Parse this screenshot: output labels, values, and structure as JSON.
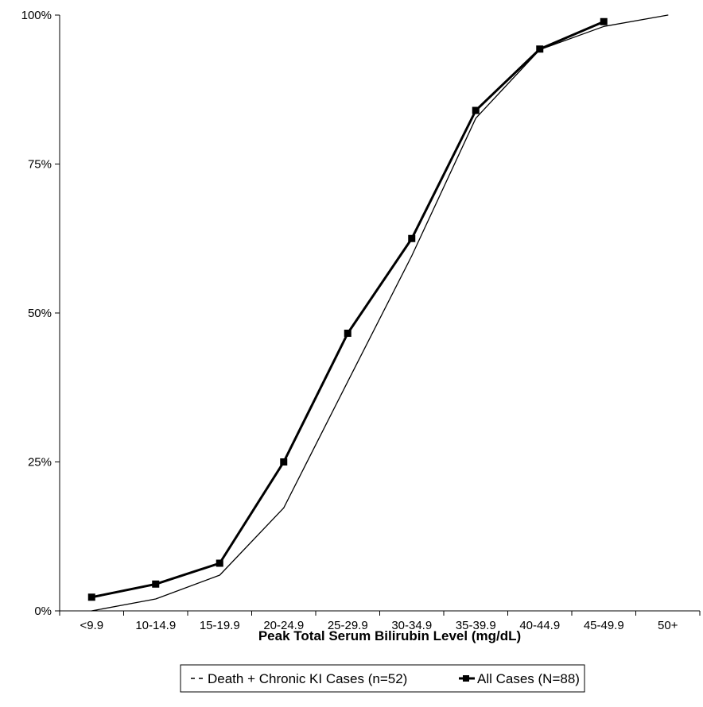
{
  "chart_data": {
    "type": "line",
    "title": "",
    "xlabel": "Peak Total Serum Bilirubin Level (mg/dL)",
    "ylabel": "",
    "categories": [
      "<9.9",
      "10-14.9",
      "15-19.9",
      "20-24.9",
      "25-29.9",
      "30-34.9",
      "35-39.9",
      "40-44.9",
      "45-49.9",
      "50+"
    ],
    "y_tick_labels": [
      "0%",
      "25%",
      "50%",
      "75%",
      "100%"
    ],
    "ylim": [
      0,
      100
    ],
    "y_unit": "%",
    "grid": false,
    "legend_position": "bottom-center",
    "series": [
      {
        "name": "Death + Chronic KI Cases (n=52)",
        "style": "thin-line-no-markers",
        "color": "#000000",
        "values": [
          0,
          2,
          6,
          17.3,
          38.5,
          59.6,
          82.7,
          94.2,
          98.1,
          100
        ]
      },
      {
        "name": "All Cases (N=88)",
        "style": "thick-line-square-markers",
        "color": "#000000",
        "values": [
          2.3,
          4.5,
          8,
          25,
          46.6,
          62.5,
          84,
          94.3,
          98.9,
          null
        ]
      }
    ]
  }
}
